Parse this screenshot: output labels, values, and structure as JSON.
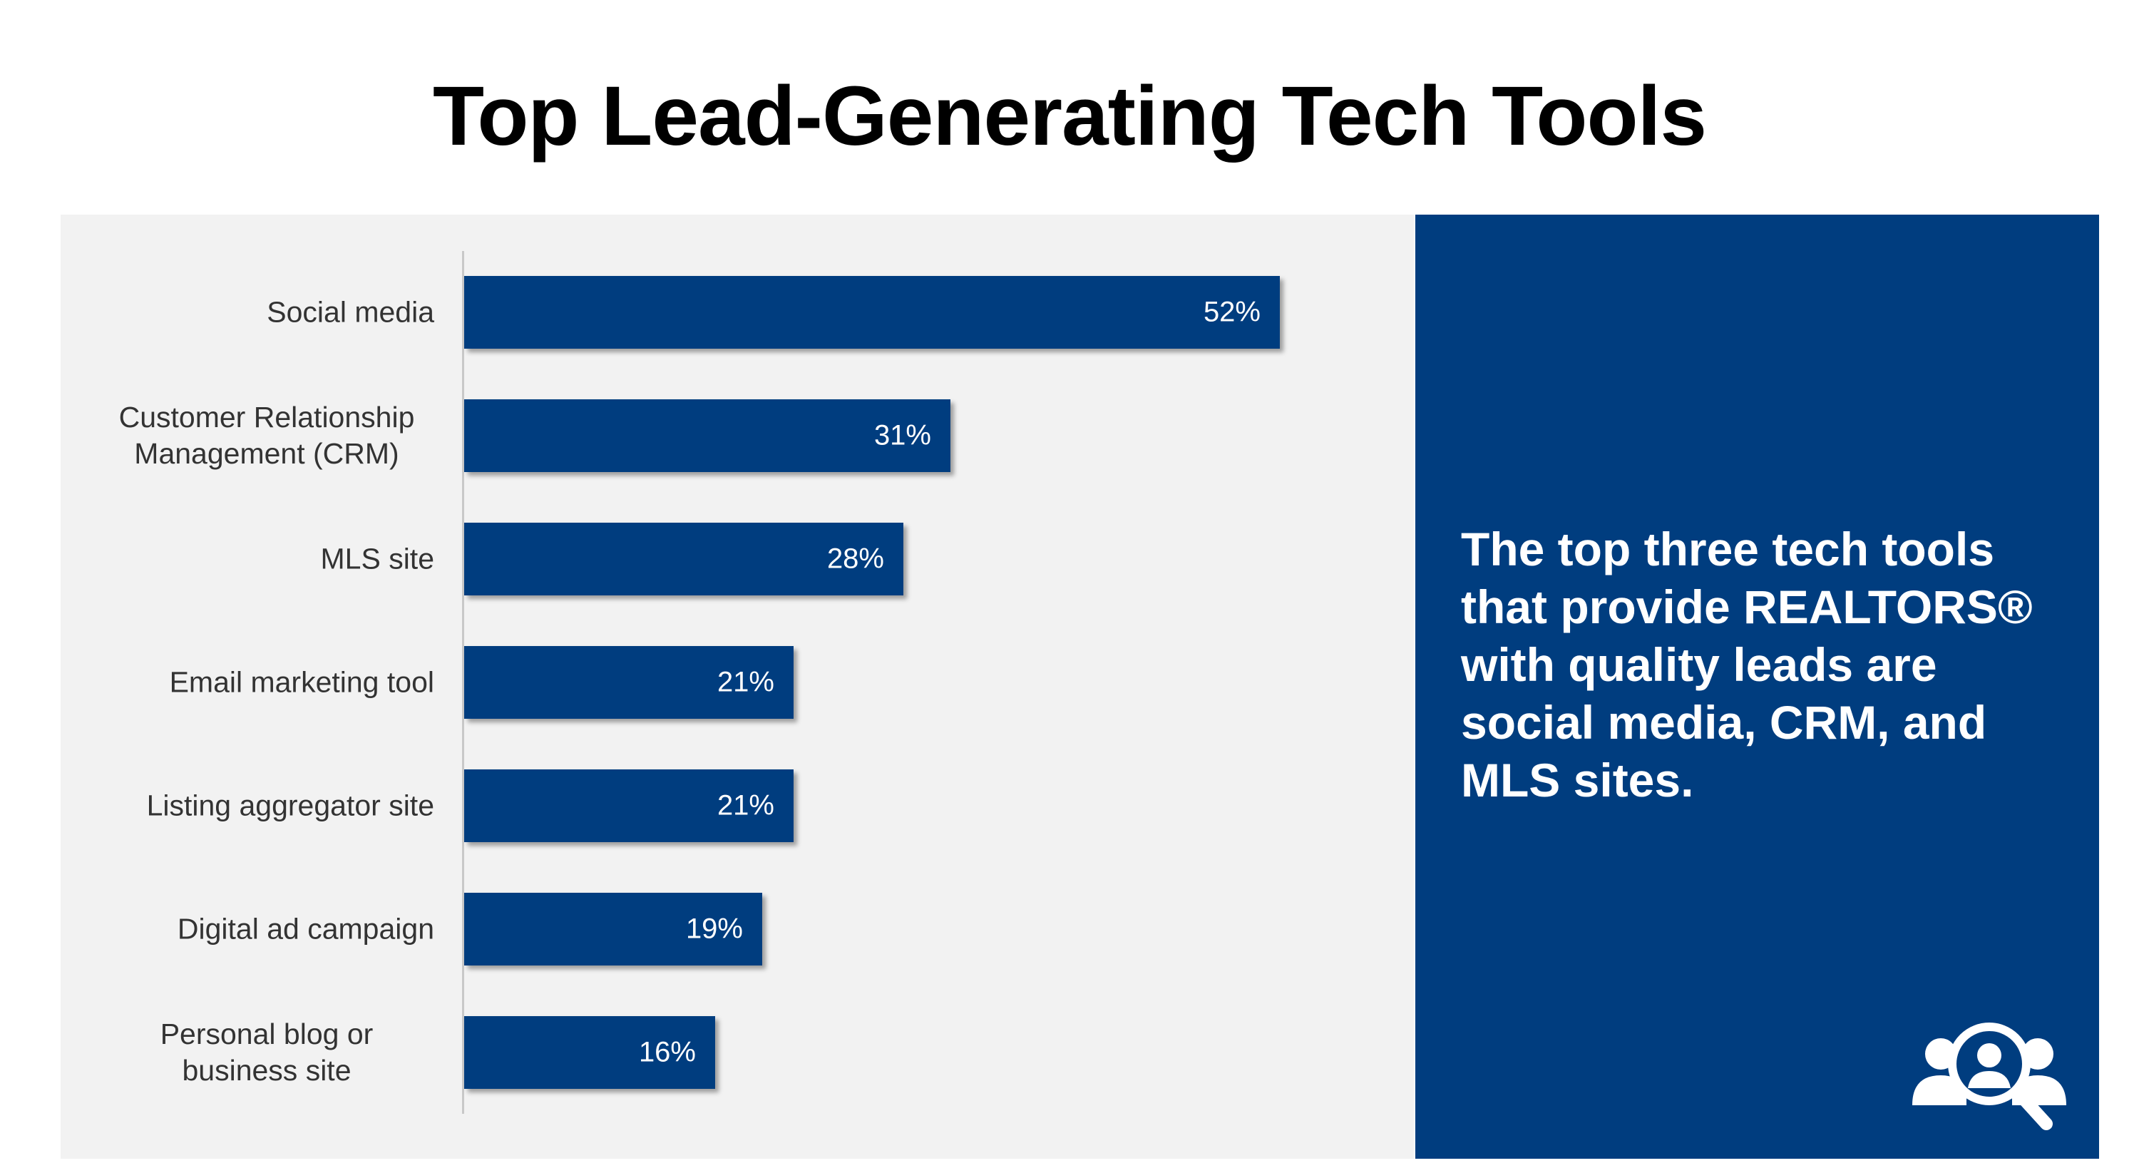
{
  "chart_data": {
    "type": "bar",
    "orientation": "horizontal",
    "title": "Top Lead-Generating Tech Tools",
    "categories": [
      "Social media",
      "Customer Relationship Management (CRM)",
      "MLS site",
      "Email marketing tool",
      "Listing aggregator site",
      "Digital ad campaign",
      "Personal blog or business site"
    ],
    "values": [
      52,
      31,
      28,
      21,
      21,
      19,
      16
    ],
    "value_labels": [
      "52%",
      "31%",
      "28%",
      "21%",
      "21%",
      "19%",
      "16%"
    ],
    "color": "#003d7f",
    "annotation": "The top three tech tools that provide REALTORS® with quality leads are social media, CRM, and MLS sites."
  }
}
